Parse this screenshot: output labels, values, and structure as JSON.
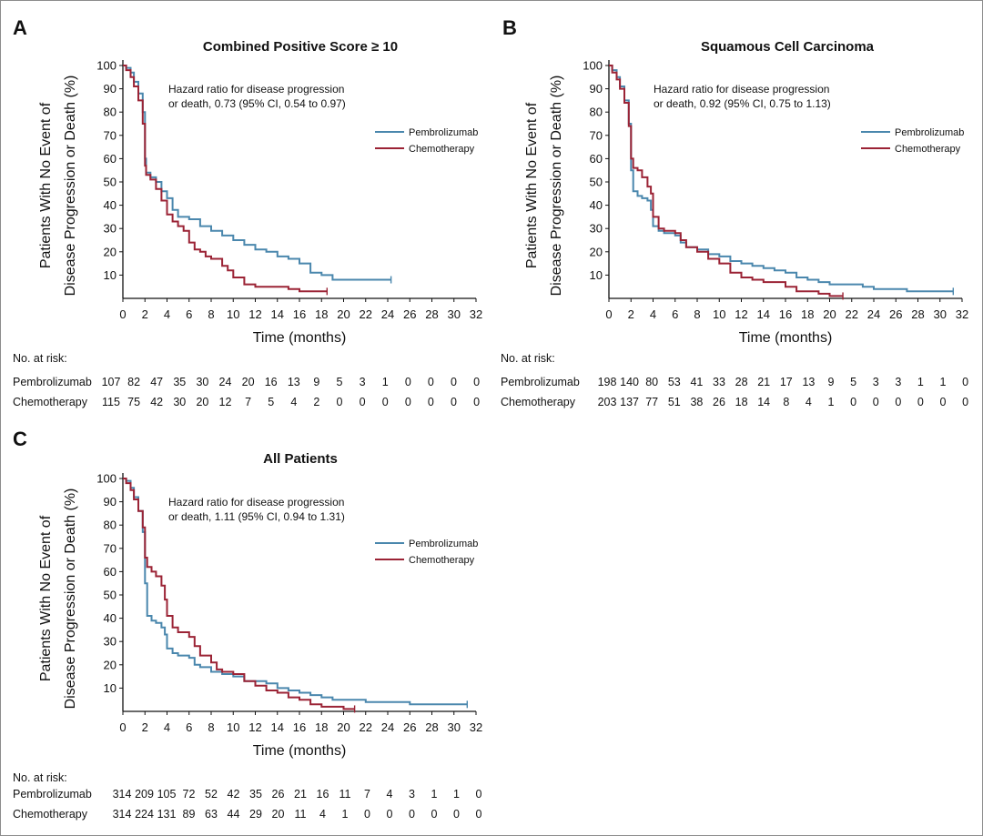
{
  "figure_border_color": "#8c8c8c",
  "colors": {
    "pembrolizumab": "#4a87ad",
    "chemotherapy": "#9b2335",
    "axis": "#111111"
  },
  "chart_data": [
    {
      "panel": "A",
      "type": "line",
      "title": "Combined Positive Score ≥ 10",
      "xlabel": "Time (months)",
      "ylabel_lines": [
        "Patients With No Event of",
        "Disease Progression or Death (%)"
      ],
      "xlim": [
        0,
        32
      ],
      "ylim": [
        0,
        100
      ],
      "xticks": [
        0,
        2,
        4,
        6,
        8,
        10,
        12,
        14,
        16,
        18,
        20,
        22,
        24,
        26,
        28,
        30,
        32
      ],
      "yticks": [
        10,
        20,
        30,
        40,
        50,
        60,
        70,
        80,
        90,
        100
      ],
      "annotation": [
        "Hazard ratio for disease progression",
        "or death, 0.73 (95% CI, 0.54 to 0.97)"
      ],
      "legend": "right",
      "series": [
        {
          "name": "Pembrolizumab",
          "color": "#4a87ad",
          "points": [
            [
              0,
              100
            ],
            [
              0.3,
              99
            ],
            [
              0.7,
              97
            ],
            [
              1,
              93
            ],
            [
              1.4,
              88
            ],
            [
              1.8,
              80
            ],
            [
              2.0,
              60
            ],
            [
              2.1,
              54
            ],
            [
              2.5,
              52
            ],
            [
              3,
              50
            ],
            [
              3.5,
              46
            ],
            [
              4,
              43
            ],
            [
              4.5,
              38
            ],
            [
              5,
              35
            ],
            [
              6,
              34
            ],
            [
              7,
              31
            ],
            [
              8,
              29
            ],
            [
              9,
              27
            ],
            [
              10,
              25
            ],
            [
              11,
              23
            ],
            [
              12,
              21
            ],
            [
              13,
              20
            ],
            [
              14,
              18
            ],
            [
              15,
              17
            ],
            [
              16,
              15
            ],
            [
              17,
              11
            ],
            [
              18,
              10
            ],
            [
              19,
              8
            ],
            [
              20,
              8
            ],
            [
              22,
              8
            ],
            [
              24.3,
              8
            ]
          ]
        },
        {
          "name": "Chemotherapy",
          "color": "#9b2335",
          "points": [
            [
              0,
              100
            ],
            [
              0.3,
              98
            ],
            [
              0.7,
              95
            ],
            [
              1,
              91
            ],
            [
              1.4,
              85
            ],
            [
              1.8,
              75
            ],
            [
              2.0,
              57
            ],
            [
              2.1,
              53
            ],
            [
              2.5,
              51
            ],
            [
              3,
              47
            ],
            [
              3.5,
              42
            ],
            [
              4,
              36
            ],
            [
              4.5,
              33
            ],
            [
              5,
              31
            ],
            [
              5.5,
              29
            ],
            [
              6,
              24
            ],
            [
              6.5,
              21
            ],
            [
              7,
              20
            ],
            [
              7.5,
              18
            ],
            [
              8,
              17
            ],
            [
              9,
              14
            ],
            [
              9.5,
              12
            ],
            [
              10,
              9
            ],
            [
              11,
              6
            ],
            [
              12,
              5
            ],
            [
              13,
              5
            ],
            [
              14,
              5
            ],
            [
              15,
              4
            ],
            [
              16,
              3
            ],
            [
              17,
              3
            ],
            [
              18.5,
              3
            ]
          ]
        }
      ],
      "at_risk": {
        "header": "No. at risk:",
        "rows": [
          {
            "label": "Pembrolizumab",
            "values": [
              "107",
              "82",
              "47",
              "35",
              "30",
              "24",
              "20",
              "16",
              "13",
              "9",
              "5",
              "3",
              "1",
              "0",
              "0",
              "0",
              "0"
            ]
          },
          {
            "label": "Chemotherapy",
            "values": [
              "115",
              "75",
              "42",
              "30",
              "20",
              "12",
              "7",
              "5",
              "4",
              "2",
              "0",
              "0",
              "0",
              "0",
              "0",
              "0",
              "0"
            ]
          }
        ]
      }
    },
    {
      "panel": "B",
      "type": "line",
      "title": "Squamous Cell Carcinoma",
      "xlabel": "Time (months)",
      "ylabel_lines": [
        "Patients With No Event of",
        "Disease Progression or Death (%)"
      ],
      "xlim": [
        0,
        32
      ],
      "ylim": [
        0,
        100
      ],
      "xticks": [
        0,
        2,
        4,
        6,
        8,
        10,
        12,
        14,
        16,
        18,
        20,
        22,
        24,
        26,
        28,
        30,
        32
      ],
      "yticks": [
        10,
        20,
        30,
        40,
        50,
        60,
        70,
        80,
        90,
        100
      ],
      "annotation": [
        "Hazard ratio for disease progression",
        "or death, 0.92 (95% CI, 0.75 to 1.13)"
      ],
      "legend": "right",
      "series": [
        {
          "name": "Pembrolizumab",
          "color": "#4a87ad",
          "points": [
            [
              0,
              100
            ],
            [
              0.3,
              98
            ],
            [
              0.7,
              95
            ],
            [
              1,
              91
            ],
            [
              1.4,
              85
            ],
            [
              1.8,
              75
            ],
            [
              2.0,
              55
            ],
            [
              2.2,
              46
            ],
            [
              2.6,
              44
            ],
            [
              3,
              43
            ],
            [
              3.5,
              42
            ],
            [
              3.8,
              38
            ],
            [
              4,
              31
            ],
            [
              4.5,
              29
            ],
            [
              5,
              28
            ],
            [
              6,
              27
            ],
            [
              6.5,
              24
            ],
            [
              7,
              22
            ],
            [
              8,
              21
            ],
            [
              9,
              19
            ],
            [
              10,
              18
            ],
            [
              11,
              16
            ],
            [
              12,
              15
            ],
            [
              13,
              14
            ],
            [
              14,
              13
            ],
            [
              15,
              12
            ],
            [
              16,
              11
            ],
            [
              17,
              9
            ],
            [
              18,
              8
            ],
            [
              19,
              7
            ],
            [
              20,
              6
            ],
            [
              22,
              6
            ],
            [
              23,
              5
            ],
            [
              24,
              4
            ],
            [
              26,
              4
            ],
            [
              27,
              3
            ],
            [
              28,
              3
            ],
            [
              31.2,
              3
            ]
          ]
        },
        {
          "name": "Chemotherapy",
          "color": "#9b2335",
          "points": [
            [
              0,
              100
            ],
            [
              0.3,
              97
            ],
            [
              0.7,
              94
            ],
            [
              1,
              90
            ],
            [
              1.4,
              84
            ],
            [
              1.8,
              74
            ],
            [
              2.0,
              60
            ],
            [
              2.2,
              56
            ],
            [
              2.6,
              55
            ],
            [
              3,
              52
            ],
            [
              3.5,
              48
            ],
            [
              3.8,
              45
            ],
            [
              4,
              35
            ],
            [
              4.5,
              30
            ],
            [
              5,
              29
            ],
            [
              6,
              28
            ],
            [
              6.5,
              25
            ],
            [
              7,
              22
            ],
            [
              8,
              20
            ],
            [
              9,
              17
            ],
            [
              10,
              15
            ],
            [
              11,
              11
            ],
            [
              12,
              9
            ],
            [
              13,
              8
            ],
            [
              14,
              7
            ],
            [
              15,
              7
            ],
            [
              16,
              5
            ],
            [
              17,
              3
            ],
            [
              18,
              3
            ],
            [
              19,
              2
            ],
            [
              20,
              1
            ],
            [
              21.2,
              1
            ]
          ]
        }
      ],
      "at_risk": {
        "header": "No. at risk:",
        "rows": [
          {
            "label": "Pembrolizumab",
            "values": [
              "198",
              "140",
              "80",
              "53",
              "41",
              "33",
              "28",
              "21",
              "17",
              "13",
              "9",
              "5",
              "3",
              "3",
              "1",
              "1",
              "0"
            ]
          },
          {
            "label": "Chemotherapy",
            "values": [
              "203",
              "137",
              "77",
              "51",
              "38",
              "26",
              "18",
              "14",
              "8",
              "4",
              "1",
              "0",
              "0",
              "0",
              "0",
              "0",
              "0"
            ]
          }
        ]
      }
    },
    {
      "panel": "C",
      "type": "line",
      "title": "All Patients",
      "xlabel": "Time (months)",
      "ylabel_lines": [
        "Patients With No Event of",
        "Disease Progression or Death (%)"
      ],
      "xlim": [
        0,
        32
      ],
      "ylim": [
        0,
        100
      ],
      "xticks": [
        0,
        2,
        4,
        6,
        8,
        10,
        12,
        14,
        16,
        18,
        20,
        22,
        24,
        26,
        28,
        30,
        32
      ],
      "yticks": [
        10,
        20,
        30,
        40,
        50,
        60,
        70,
        80,
        90,
        100
      ],
      "annotation": [
        "Hazard ratio for disease progression",
        "or death, 1.11 (95% CI, 0.94 to 1.31)"
      ],
      "legend": "right",
      "series": [
        {
          "name": "Pembrolizumab",
          "color": "#4a87ad",
          "points": [
            [
              0,
              100
            ],
            [
              0.3,
              99
            ],
            [
              0.7,
              96
            ],
            [
              1,
              92
            ],
            [
              1.4,
              86
            ],
            [
              1.8,
              77
            ],
            [
              2.0,
              55
            ],
            [
              2.2,
              41
            ],
            [
              2.6,
              39
            ],
            [
              3,
              38
            ],
            [
              3.5,
              36
            ],
            [
              3.8,
              33
            ],
            [
              4,
              27
            ],
            [
              4.5,
              25
            ],
            [
              5,
              24
            ],
            [
              6,
              23
            ],
            [
              6.5,
              20
            ],
            [
              7,
              19
            ],
            [
              8,
              17
            ],
            [
              9,
              16
            ],
            [
              10,
              15
            ],
            [
              11,
              13
            ],
            [
              12,
              13
            ],
            [
              13,
              12
            ],
            [
              14,
              10
            ],
            [
              15,
              9
            ],
            [
              16,
              8
            ],
            [
              17,
              7
            ],
            [
              18,
              6
            ],
            [
              19,
              5
            ],
            [
              20,
              5
            ],
            [
              22,
              4
            ],
            [
              24,
              4
            ],
            [
              26,
              3
            ],
            [
              28,
              3
            ],
            [
              31.2,
              3
            ]
          ]
        },
        {
          "name": "Chemotherapy",
          "color": "#9b2335",
          "points": [
            [
              0,
              100
            ],
            [
              0.3,
              98
            ],
            [
              0.7,
              95
            ],
            [
              1,
              91
            ],
            [
              1.4,
              86
            ],
            [
              1.8,
              79
            ],
            [
              2.0,
              66
            ],
            [
              2.2,
              62
            ],
            [
              2.6,
              60
            ],
            [
              3,
              58
            ],
            [
              3.5,
              54
            ],
            [
              3.8,
              48
            ],
            [
              4,
              41
            ],
            [
              4.5,
              36
            ],
            [
              5,
              34
            ],
            [
              6,
              32
            ],
            [
              6.5,
              28
            ],
            [
              7,
              24
            ],
            [
              8,
              21
            ],
            [
              8.5,
              18
            ],
            [
              9,
              17
            ],
            [
              10,
              16
            ],
            [
              11,
              13
            ],
            [
              12,
              11
            ],
            [
              13,
              9
            ],
            [
              14,
              8
            ],
            [
              15,
              6
            ],
            [
              16,
              5
            ],
            [
              17,
              3
            ],
            [
              18,
              2
            ],
            [
              19,
              2
            ],
            [
              20,
              1
            ],
            [
              21,
              1
            ]
          ]
        }
      ],
      "at_risk": {
        "header": "No. at risk:",
        "rows": [
          {
            "label": "Pembrolizumab",
            "values": [
              "314",
              "209",
              "105",
              "72",
              "52",
              "42",
              "35",
              "26",
              "21",
              "16",
              "11",
              "7",
              "4",
              "3",
              "1",
              "1",
              "0"
            ]
          },
          {
            "label": "Chemotherapy",
            "values": [
              "314",
              "224",
              "131",
              "89",
              "63",
              "44",
              "29",
              "20",
              "11",
              "4",
              "1",
              "0",
              "0",
              "0",
              "0",
              "0",
              "0"
            ]
          }
        ]
      }
    }
  ]
}
